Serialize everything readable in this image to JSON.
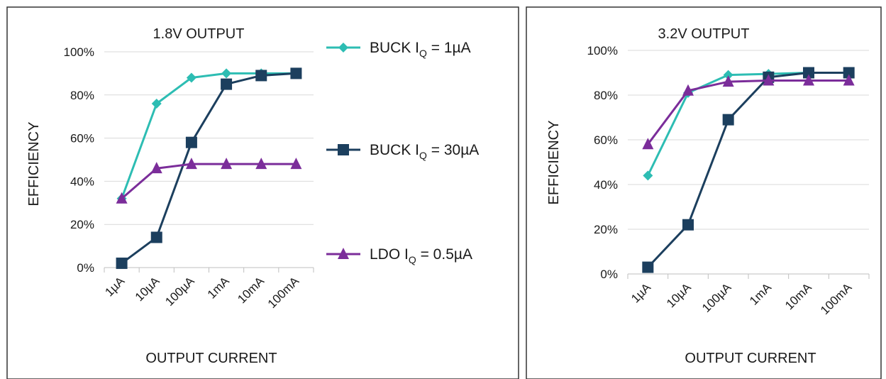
{
  "chart_data": [
    {
      "type": "line",
      "title": "1.8V OUTPUT",
      "xlabel": "OUTPUT CURRENT",
      "ylabel": "EFFICIENCY",
      "categories": [
        "1µA",
        "10µA",
        "100µA",
        "1mA",
        "10mA",
        "100mA"
      ],
      "y_ticks": [
        "0%",
        "20%",
        "40%",
        "60%",
        "80%",
        "100%"
      ],
      "ylim": [
        0,
        100
      ],
      "grid": true,
      "series": [
        {
          "name": "BUCK IQ = 1µA",
          "values": [
            32,
            76,
            88,
            90,
            90,
            90
          ]
        },
        {
          "name": "BUCK IQ = 30µA",
          "values": [
            2,
            14,
            58,
            85,
            89,
            90
          ]
        },
        {
          "name": "LDO IQ = 0.5µA",
          "values": [
            32,
            46,
            48,
            48,
            48,
            48
          ]
        }
      ]
    },
    {
      "type": "line",
      "title": "3.2V OUTPUT",
      "xlabel": "OUTPUT CURRENT",
      "ylabel": "EFFICIENCY",
      "categories": [
        "1µA",
        "10µA",
        "100µA",
        "1mA",
        "10mA",
        "100mA"
      ],
      "y_ticks": [
        "0%",
        "20%",
        "40%",
        "60%",
        "80%",
        "100%"
      ],
      "ylim": [
        0,
        100
      ],
      "grid": true,
      "series": [
        {
          "name": "BUCK IQ = 1µA",
          "values": [
            44,
            81,
            89,
            89.5,
            90,
            90
          ]
        },
        {
          "name": "BUCK IQ = 30µA",
          "values": [
            3,
            22,
            69,
            88,
            90,
            90
          ]
        },
        {
          "name": "LDO IQ = 0.5µA",
          "values": [
            58,
            82,
            86,
            86.5,
            86.5,
            86.5
          ]
        }
      ]
    }
  ],
  "legend": {
    "placement": "between panels",
    "items": [
      {
        "main": "BUCK I",
        "sub": "Q",
        "rest": " = 1µA",
        "marker": "diamond",
        "color": "#2dbdb3"
      },
      {
        "main": "BUCK I",
        "sub": "Q",
        "rest": " = 30µA",
        "marker": "square",
        "color": "#1c3f5e"
      },
      {
        "main": "LDO I",
        "sub": "Q",
        "rest": "  = 0.5µA",
        "marker": "triangle",
        "color": "#7b2d9a"
      }
    ]
  },
  "colors": {
    "series": [
      "#2dbdb3",
      "#1c3f5e",
      "#7b2d9a"
    ],
    "grid": "#d9d9d9",
    "panel_border": "#333333"
  }
}
